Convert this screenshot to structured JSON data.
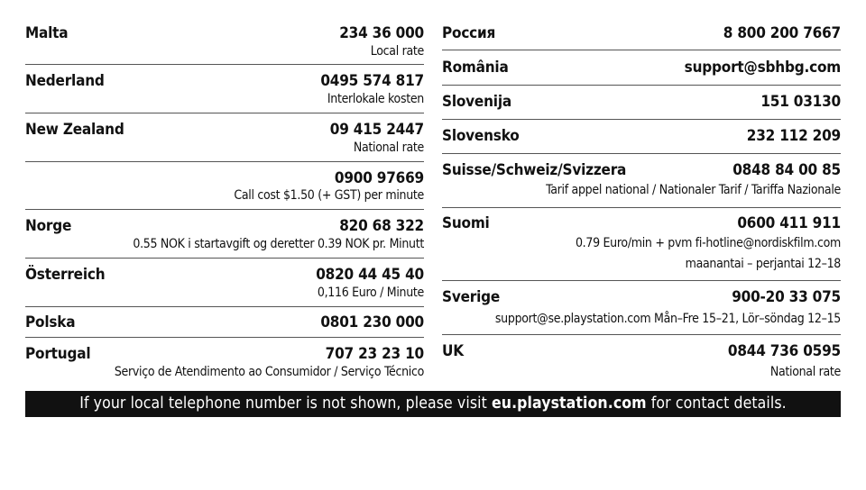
{
  "left": [
    {
      "name": "Malta",
      "phone": "234 36 000",
      "notes": [
        "Local rate"
      ]
    },
    {
      "name": "Nederland",
      "phone": "0495 574 817",
      "notes": [
        "Interlokale kosten"
      ]
    },
    {
      "name": "New Zealand",
      "phone": "09 415 2447",
      "notes": [
        "National rate"
      ]
    },
    {
      "name": "",
      "phone": "0900 97669",
      "notes": [
        "Call cost $1.50 (+ GST) per minute"
      ]
    },
    {
      "name": "Norge",
      "phone": "820 68 322",
      "notes": [
        "0.55 NOK i startavgift og deretter 0.39 NOK pr. Minutt"
      ]
    },
    {
      "name": "Österreich",
      "phone": "0820 44 45 40",
      "notes": [
        "0,116 Euro / Minute"
      ]
    },
    {
      "name": "Polska",
      "phone": "0801 230 000",
      "notes": []
    },
    {
      "name": "Portugal",
      "phone": "707 23 23 10",
      "notes": [
        "Serviço de Atendimento ao Consumidor / Serviço Técnico"
      ]
    }
  ],
  "right": [
    {
      "name": "Россия",
      "phone": "8 800 200 7667",
      "notes": []
    },
    {
      "name": "România",
      "phone": "support@sbhbg.com",
      "notes": []
    },
    {
      "name": "Slovenija",
      "phone": "151 03130",
      "notes": []
    },
    {
      "name": "Slovensko",
      "phone": "232 112 209",
      "notes": []
    },
    {
      "name": "Suisse/Schweiz/Svizzera",
      "phone": "0848 84 00 85",
      "notes": [
        "Tarif appel national / Nationaler Tarif / Tariffa Nazionale"
      ]
    },
    {
      "name": "Suomi",
      "phone": "0600 411 911",
      "notes": [
        "0.79 Euro/min + pvm fi-hotline@nordiskfilm.com",
        "maanantai – perjantai 12–18"
      ]
    },
    {
      "name": "Sverige",
      "phone": "900-20 33 075",
      "notes": [
        "support@se.playstation.com Mån–Fre 15–21, Lör–söndag 12–15"
      ]
    },
    {
      "name": "UK",
      "phone": "0844 736 0595",
      "notes": [
        "National rate"
      ]
    }
  ],
  "banner": {
    "before": "If your local telephone number is not shown, please visit ",
    "link": "eu.playstation.com",
    "after": " for contact details."
  }
}
